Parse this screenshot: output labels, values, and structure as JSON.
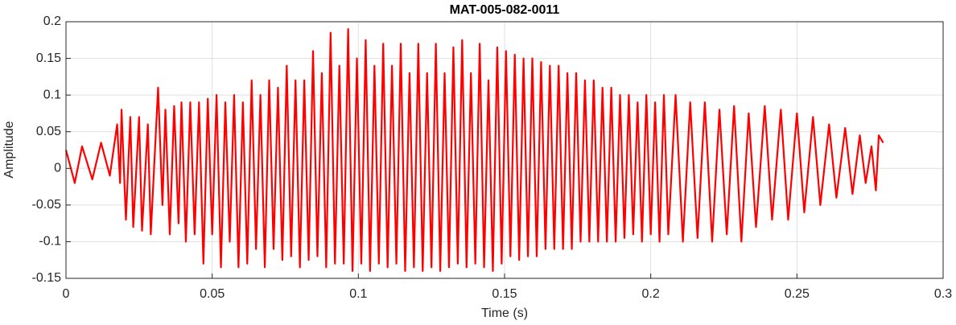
{
  "chart_data": {
    "type": "line",
    "title": "MAT-005-082-0011",
    "xlabel": "Time (s)",
    "ylabel": "Amplitude",
    "x": [
      0,
      0.003,
      0.0055,
      0.009,
      0.012,
      0.015,
      0.0175,
      0.0185,
      0.019,
      0.0205,
      0.022,
      0.023,
      0.025,
      0.026,
      0.028,
      0.029,
      0.0315,
      0.033,
      0.034,
      0.0355,
      0.037,
      0.0385,
      0.0395,
      0.041,
      0.0425,
      0.044,
      0.0455,
      0.047,
      0.0485,
      0.05,
      0.0515,
      0.053,
      0.0545,
      0.056,
      0.0575,
      0.059,
      0.0605,
      0.062,
      0.0635,
      0.065,
      0.0665,
      0.068,
      0.0695,
      0.071,
      0.0725,
      0.074,
      0.0755,
      0.077,
      0.0785,
      0.08,
      0.0815,
      0.083,
      0.0845,
      0.086,
      0.0875,
      0.089,
      0.0905,
      0.092,
      0.0935,
      0.095,
      0.0965,
      0.098,
      0.0995,
      0.101,
      0.1025,
      0.104,
      0.1055,
      0.107,
      0.1085,
      0.11,
      0.1115,
      0.113,
      0.1145,
      0.116,
      0.1175,
      0.119,
      0.1205,
      0.122,
      0.1235,
      0.125,
      0.1265,
      0.128,
      0.1295,
      0.131,
      0.1325,
      0.134,
      0.1355,
      0.137,
      0.1385,
      0.14,
      0.1415,
      0.143,
      0.1445,
      0.146,
      0.1475,
      0.149,
      0.1505,
      0.152,
      0.1535,
      0.155,
      0.1565,
      0.158,
      0.1595,
      0.161,
      0.1625,
      0.164,
      0.1655,
      0.167,
      0.1685,
      0.17,
      0.1715,
      0.173,
      0.1745,
      0.176,
      0.1775,
      0.179,
      0.1805,
      0.182,
      0.1835,
      0.185,
      0.1865,
      0.188,
      0.1895,
      0.191,
      0.1925,
      0.194,
      0.1955,
      0.197,
      0.1985,
      0.2,
      0.2015,
      0.203,
      0.2045,
      0.206,
      0.2085,
      0.211,
      0.2135,
      0.216,
      0.2185,
      0.221,
      0.2235,
      0.226,
      0.2285,
      0.231,
      0.2335,
      0.236,
      0.239,
      0.2415,
      0.2445,
      0.247,
      0.25,
      0.2525,
      0.2555,
      0.258,
      0.261,
      0.2635,
      0.2665,
      0.269,
      0.2715,
      0.2735,
      0.2755,
      0.277,
      0.278,
      0.2795
    ],
    "series": [
      {
        "name": "Amplitude",
        "color": "#ff0000",
        "values": [
          0.025,
          -0.02,
          0.03,
          -0.015,
          0.035,
          -0.01,
          0.06,
          -0.02,
          0.08,
          -0.07,
          0.07,
          -0.08,
          0.07,
          -0.085,
          0.06,
          -0.09,
          0.11,
          -0.05,
          0.08,
          -0.09,
          0.085,
          -0.075,
          0.09,
          -0.1,
          0.09,
          -0.09,
          0.09,
          -0.13,
          0.095,
          -0.09,
          0.1,
          -0.135,
          0.09,
          -0.1,
          0.1,
          -0.135,
          0.09,
          -0.13,
          0.12,
          -0.11,
          0.1,
          -0.135,
          0.12,
          -0.11,
          0.11,
          -0.125,
          0.14,
          -0.12,
          0.12,
          -0.135,
          0.12,
          -0.125,
          0.16,
          -0.12,
          0.13,
          -0.135,
          0.185,
          -0.13,
          0.14,
          -0.13,
          0.19,
          -0.14,
          0.15,
          -0.13,
          0.175,
          -0.14,
          0.14,
          -0.13,
          0.17,
          -0.135,
          0.14,
          -0.13,
          0.17,
          -0.14,
          0.13,
          -0.135,
          0.17,
          -0.14,
          0.13,
          -0.135,
          0.17,
          -0.14,
          0.13,
          -0.135,
          0.165,
          -0.13,
          0.175,
          -0.135,
          0.13,
          -0.13,
          0.17,
          -0.135,
          0.12,
          -0.14,
          0.165,
          -0.13,
          0.16,
          -0.12,
          0.155,
          -0.125,
          0.15,
          -0.12,
          0.15,
          -0.12,
          0.145,
          -0.11,
          0.14,
          -0.11,
          0.14,
          -0.11,
          0.13,
          -0.11,
          0.13,
          -0.1,
          0.12,
          -0.1,
          0.12,
          -0.1,
          0.11,
          -0.1,
          0.11,
          -0.1,
          0.1,
          -0.095,
          0.1,
          -0.09,
          0.09,
          -0.1,
          0.1,
          -0.09,
          0.09,
          -0.1,
          0.1,
          -0.09,
          0.1,
          -0.1,
          0.09,
          -0.095,
          0.09,
          -0.1,
          0.08,
          -0.09,
          0.085,
          -0.1,
          0.075,
          -0.08,
          0.085,
          -0.07,
          0.08,
          -0.07,
          0.075,
          -0.06,
          0.07,
          -0.05,
          0.06,
          -0.04,
          0.055,
          -0.035,
          0.045,
          -0.02,
          0.03,
          -0.03,
          0.045,
          0.035
        ]
      }
    ],
    "xlim": [
      0,
      0.3
    ],
    "xticks": [
      0,
      0.05,
      0.1,
      0.15,
      0.2,
      0.25,
      0.3
    ],
    "ylim": [
      -0.15,
      0.2
    ],
    "yticks": [
      -0.15,
      -0.1,
      -0.05,
      0,
      0.05,
      0.1,
      0.15,
      0.2
    ],
    "grid": true
  }
}
